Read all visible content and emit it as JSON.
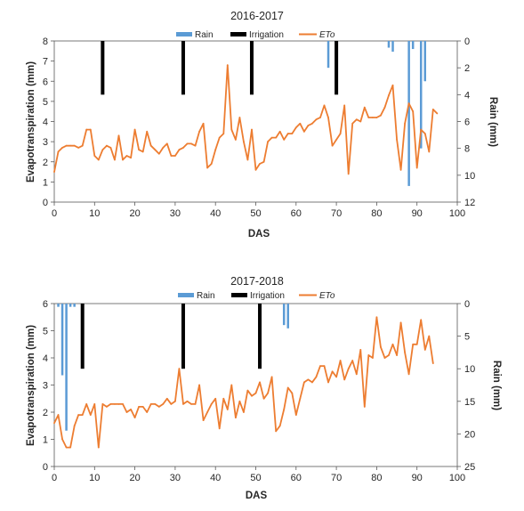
{
  "chart_data": [
    {
      "type": "line",
      "title": "2016-2017",
      "xlabel": "DAS",
      "ylabel": "Evapotranspiration (mm)",
      "y2label": "Rain (mm)",
      "xlim": [
        0,
        100
      ],
      "xticks": [
        0,
        10,
        20,
        30,
        40,
        50,
        60,
        70,
        80,
        90,
        100
      ],
      "ylim": [
        0,
        8
      ],
      "yticks": [
        0,
        1,
        2,
        3,
        4,
        5,
        6,
        7,
        8
      ],
      "y2lim": [
        0,
        12
      ],
      "y2ticks": [
        0,
        2,
        4,
        6,
        8,
        10,
        12
      ],
      "y2_inverted": true,
      "legend": {
        "position": "top",
        "entries": [
          "Rain",
          "Irrigation",
          "ETo"
        ]
      },
      "colors": {
        "rain": "#5b9bd5",
        "irrigation": "#000000",
        "eto": "#ed7d31"
      },
      "series": [
        {
          "name": "ETo",
          "kind": "line",
          "axis": "left",
          "x": [
            0,
            1,
            2,
            3,
            4,
            5,
            6,
            7,
            8,
            9,
            10,
            11,
            12,
            13,
            14,
            15,
            16,
            17,
            18,
            19,
            20,
            21,
            22,
            23,
            24,
            25,
            26,
            27,
            28,
            29,
            30,
            31,
            32,
            33,
            34,
            35,
            36,
            37,
            38,
            39,
            40,
            41,
            42,
            43,
            44,
            45,
            46,
            47,
            48,
            49,
            50,
            51,
            52,
            53,
            54,
            55,
            56,
            57,
            58,
            59,
            60,
            61,
            62,
            63,
            64,
            65,
            66,
            67,
            68,
            69,
            70,
            71,
            72,
            73,
            74,
            75,
            76,
            77,
            78,
            79,
            80,
            81,
            82,
            83,
            84,
            85,
            86,
            87,
            88,
            89,
            90,
            91,
            92,
            93,
            94,
            95
          ],
          "y": [
            1.5,
            2.5,
            2.7,
            2.8,
            2.8,
            2.8,
            2.7,
            2.8,
            3.6,
            3.6,
            2.3,
            2.1,
            2.6,
            2.8,
            2.7,
            2.1,
            3.3,
            2.1,
            2.3,
            2.2,
            3.6,
            2.6,
            2.5,
            3.5,
            2.8,
            2.6,
            2.4,
            2.7,
            2.9,
            2.3,
            2.3,
            2.6,
            2.7,
            2.9,
            2.9,
            2.8,
            3.5,
            3.9,
            1.7,
            1.9,
            2.6,
            3.2,
            3.4,
            6.8,
            3.6,
            3.1,
            4.2,
            3.0,
            2.1,
            3.6,
            1.6,
            1.9,
            2.0,
            3.0,
            3.2,
            3.2,
            3.5,
            3.1,
            3.4,
            3.4,
            3.7,
            3.9,
            3.5,
            3.8,
            3.9,
            4.1,
            4.2,
            4.8,
            4.2,
            2.8,
            3.1,
            3.4,
            4.8,
            1.4,
            3.9,
            4.1,
            4.0,
            4.7,
            4.2,
            4.2,
            4.2,
            4.3,
            4.7,
            5.3,
            5.8,
            3.1,
            1.6,
            3.9,
            4.9,
            4.5,
            1.7,
            3.6,
            3.4,
            2.5,
            4.6,
            4.4
          ]
        },
        {
          "name": "Rain",
          "kind": "bar",
          "axis": "right",
          "x": [
            68,
            83,
            84,
            88,
            89,
            91,
            92
          ],
          "values": [
            2.0,
            0.5,
            0.8,
            10.8,
            0.6,
            8.0,
            3.0
          ]
        },
        {
          "name": "Irrigation",
          "kind": "bar",
          "axis": "right",
          "x": [
            12,
            32,
            49,
            70
          ],
          "values": [
            4.0,
            4.0,
            4.0,
            4.0
          ]
        }
      ]
    },
    {
      "type": "line",
      "title": "2017-2018",
      "xlabel": "DAS",
      "ylabel": "Evapotranspiration (mm)",
      "y2label": "Rain (mm)",
      "xlim": [
        0,
        100
      ],
      "xticks": [
        0,
        10,
        20,
        30,
        40,
        50,
        60,
        70,
        80,
        90,
        100
      ],
      "ylim": [
        0,
        6
      ],
      "yticks": [
        0,
        1,
        2,
        3,
        4,
        5,
        6
      ],
      "y2lim": [
        0,
        25
      ],
      "y2ticks": [
        0,
        5,
        10,
        15,
        20,
        25
      ],
      "y2_inverted": true,
      "legend": {
        "position": "top",
        "entries": [
          "Rain",
          "Irrigation",
          "ETo"
        ]
      },
      "colors": {
        "rain": "#5b9bd5",
        "irrigation": "#000000",
        "eto": "#ed7d31"
      },
      "series": [
        {
          "name": "ETo",
          "kind": "line",
          "axis": "left",
          "x": [
            0,
            1,
            2,
            3,
            4,
            5,
            6,
            7,
            8,
            9,
            10,
            11,
            12,
            13,
            14,
            15,
            16,
            17,
            18,
            19,
            20,
            21,
            22,
            23,
            24,
            25,
            26,
            27,
            28,
            29,
            30,
            31,
            32,
            33,
            34,
            35,
            36,
            37,
            38,
            39,
            40,
            41,
            42,
            43,
            44,
            45,
            46,
            47,
            48,
            49,
            50,
            51,
            52,
            53,
            54,
            55,
            56,
            57,
            58,
            59,
            60,
            61,
            62,
            63,
            64,
            65,
            66,
            67,
            68,
            69,
            70,
            71,
            72,
            73,
            74,
            75,
            76,
            77,
            78,
            79,
            80,
            81,
            82,
            83,
            84,
            85,
            86,
            87,
            88,
            89,
            90,
            91,
            92,
            93,
            94
          ],
          "y": [
            1.6,
            1.9,
            1.0,
            0.7,
            0.7,
            1.5,
            1.9,
            1.9,
            2.3,
            1.9,
            2.3,
            0.7,
            2.3,
            2.2,
            2.3,
            2.3,
            2.3,
            2.3,
            2.0,
            2.1,
            1.8,
            2.2,
            2.2,
            2.0,
            2.3,
            2.3,
            2.2,
            2.3,
            2.5,
            2.3,
            2.4,
            3.6,
            2.3,
            2.4,
            2.3,
            2.3,
            3.0,
            1.7,
            2.0,
            2.3,
            2.5,
            1.4,
            2.5,
            2.1,
            3.0,
            1.8,
            2.4,
            2.0,
            2.8,
            2.6,
            2.7,
            3.1,
            2.5,
            2.7,
            3.3,
            1.3,
            1.5,
            2.1,
            2.9,
            2.7,
            1.9,
            2.5,
            3.1,
            3.2,
            3.1,
            3.3,
            3.7,
            3.7,
            3.1,
            3.5,
            3.3,
            3.9,
            3.2,
            3.6,
            3.9,
            3.4,
            4.3,
            2.2,
            4.1,
            4.0,
            5.5,
            4.4,
            4.0,
            4.1,
            4.5,
            4.1,
            5.3,
            4.2,
            3.4,
            4.5,
            4.5,
            5.4,
            4.3,
            4.8,
            3.8
          ]
        },
        {
          "name": "Rain",
          "kind": "bar",
          "axis": "right",
          "x": [
            1,
            2,
            3,
            4,
            5,
            57,
            58
          ],
          "values": [
            0.5,
            11.0,
            19.5,
            0.5,
            0.5,
            3.3,
            3.8
          ]
        },
        {
          "name": "Irrigation",
          "kind": "bar",
          "axis": "right",
          "x": [
            7,
            32,
            51
          ],
          "values": [
            10.0,
            10.0,
            10.0
          ]
        }
      ]
    }
  ]
}
